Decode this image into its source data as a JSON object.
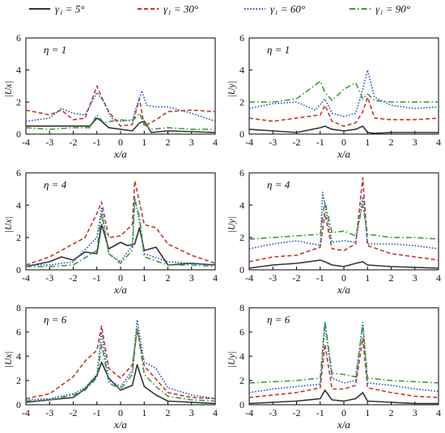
{
  "legend": [
    {
      "label": "γ₁ = 5°",
      "color": "#333333",
      "dash": "solid"
    },
    {
      "label": "γ₁ = 30°",
      "color": "#c0392b",
      "dash": "dashed"
    },
    {
      "label": "γ₁ = 60°",
      "color": "#2255cc",
      "dash": "dotted"
    },
    {
      "label": "γ₁ = 90°",
      "color": "#3a9a3a",
      "dash": "dashdot"
    }
  ],
  "colors": {
    "g5": "#333333",
    "g30": "#c0392b",
    "g60": "#2255cc",
    "g90": "#3a9a3a"
  },
  "chart_data": [
    {
      "type": "line",
      "title": "η = 1",
      "ylabel": "|Ux|",
      "xlabel": "x/a",
      "xlim": [
        -4,
        4
      ],
      "ylim": [
        0,
        6
      ],
      "yticks": [
        0,
        2,
        4,
        6
      ],
      "xticks": [
        -4,
        -3,
        -2,
        -1,
        0,
        1,
        2,
        3,
        4
      ],
      "series": [
        {
          "name": "γ₁ = 5°",
          "x": [
            -4,
            -3,
            -2,
            -1.3,
            -1,
            -0.8,
            -0.5,
            0,
            0.5,
            0.8,
            1,
            1.3,
            2,
            3,
            4
          ],
          "y": [
            0.5,
            0.5,
            0.5,
            0.5,
            1.0,
            0.8,
            0.4,
            0.3,
            0.2,
            0.7,
            0.8,
            0.1,
            0.2,
            0.15,
            0.1
          ]
        },
        {
          "name": "γ₁ = 30°",
          "x": [
            -4,
            -3,
            -2.5,
            -2,
            -1.5,
            -1,
            -0.8,
            -0.5,
            0,
            0.5,
            0.8,
            1,
            1.5,
            2,
            3,
            4
          ],
          "y": [
            1.5,
            1.2,
            1.5,
            0.9,
            1.0,
            3.0,
            2.3,
            1.4,
            0.5,
            0.6,
            2.2,
            0.5,
            0.9,
            1.4,
            1.5,
            1.4
          ]
        },
        {
          "name": "γ₁ = 60°",
          "x": [
            -4,
            -3,
            -2.5,
            -2,
            -1.5,
            -1,
            -0.7,
            -0.4,
            0,
            0.5,
            0.9,
            1.1,
            1.5,
            2,
            3,
            4
          ],
          "y": [
            0.8,
            1.0,
            1.6,
            1.3,
            1.2,
            2.6,
            2.0,
            1.0,
            0.8,
            0.9,
            2.7,
            1.8,
            1.7,
            1.7,
            1.3,
            0.8
          ]
        },
        {
          "name": "γ₁ = 90°",
          "x": [
            -4,
            -3,
            -2,
            -1.3,
            -1,
            -0.7,
            -0.4,
            0,
            0.5,
            0.8,
            1,
            1.3,
            2,
            3,
            4
          ],
          "y": [
            0.4,
            0.3,
            0.4,
            0.4,
            1.2,
            0.7,
            0.8,
            0.9,
            0.8,
            1.3,
            0.6,
            0.3,
            0.4,
            0.3,
            0.3
          ]
        }
      ]
    },
    {
      "type": "line",
      "title": "η = 1",
      "ylabel": "|Uy|",
      "xlabel": "x/a",
      "xlim": [
        -4,
        4
      ],
      "ylim": [
        0,
        6
      ],
      "yticks": [
        0,
        2,
        4,
        6
      ],
      "xticks": [
        -4,
        -3,
        -2,
        -1,
        0,
        1,
        2,
        3,
        4
      ],
      "series": [
        {
          "name": "γ₁ = 5°",
          "x": [
            -4,
            -3,
            -2,
            -1,
            -0.8,
            -0.5,
            0,
            0.5,
            0.8,
            1,
            1.3,
            2,
            3,
            4
          ],
          "y": [
            0.3,
            0.2,
            0.1,
            0.4,
            0.5,
            0.3,
            0.2,
            0.3,
            0.5,
            0.1,
            0.05,
            0.1,
            0.1,
            0.1
          ]
        },
        {
          "name": "γ₁ = 30°",
          "x": [
            -4,
            -3,
            -2,
            -1,
            -0.8,
            -0.5,
            0,
            0.5,
            0.8,
            1,
            1.3,
            2,
            3,
            4
          ],
          "y": [
            1.0,
            0.8,
            1.0,
            1.2,
            1.8,
            0.8,
            0.5,
            0.7,
            1.4,
            2.3,
            1.0,
            0.9,
            0.9,
            1.0
          ]
        },
        {
          "name": "γ₁ = 60°",
          "x": [
            -4,
            -3,
            -2,
            -1.2,
            -0.8,
            -0.5,
            0,
            0.5,
            0.8,
            1,
            1.3,
            2,
            3,
            4
          ],
          "y": [
            1.6,
            1.9,
            2.0,
            1.5,
            2.2,
            1.3,
            1.1,
            1.3,
            2.8,
            4.0,
            2.3,
            1.8,
            1.6,
            1.7
          ]
        },
        {
          "name": "γ₁ = 90°",
          "x": [
            -4,
            -3,
            -2,
            -1,
            -0.8,
            -0.5,
            0,
            0.5,
            0.8,
            1,
            1.3,
            2,
            3,
            4
          ],
          "y": [
            2.0,
            2.0,
            2.2,
            3.3,
            2.6,
            2.1,
            2.8,
            3.2,
            2.2,
            2.5,
            2.1,
            2.0,
            2.0,
            2.0
          ]
        }
      ]
    },
    {
      "type": "line",
      "title": "η = 4",
      "ylabel": "|Ux|",
      "xlabel": "x/a",
      "xlim": [
        -4,
        4
      ],
      "ylim": [
        0,
        6
      ],
      "yticks": [
        0,
        2,
        4,
        6
      ],
      "xticks": [
        -4,
        -3,
        -2,
        -1,
        0,
        1,
        2,
        3,
        4
      ],
      "series": [
        {
          "name": "γ₁ = 5°",
          "x": [
            -4,
            -3,
            -2.5,
            -2,
            -1.5,
            -1,
            -0.8,
            -0.5,
            0,
            0.3,
            0.6,
            0.8,
            1,
            1.5,
            2,
            3,
            4
          ],
          "y": [
            0.2,
            0.5,
            0.8,
            0.6,
            1.1,
            1.0,
            2.8,
            1.3,
            1.7,
            1.5,
            1.6,
            2.6,
            1.2,
            1.4,
            0.3,
            0.4,
            0.3
          ]
        },
        {
          "name": "γ₁ = 30°",
          "x": [
            -4,
            -3,
            -2,
            -1.5,
            -1,
            -0.8,
            -0.5,
            0,
            0.5,
            0.6,
            0.8,
            1,
            1.5,
            2,
            3,
            4
          ],
          "y": [
            0.3,
            0.8,
            1.6,
            2.0,
            3.5,
            4.2,
            2.0,
            2.1,
            2.8,
            5.5,
            4.2,
            2.8,
            2.6,
            1.6,
            0.9,
            0.4
          ]
        },
        {
          "name": "γ₁ = 60°",
          "x": [
            -4,
            -3,
            -2,
            -1,
            -0.8,
            -0.5,
            0,
            0.5,
            0.6,
            0.8,
            1,
            2,
            3,
            4
          ],
          "y": [
            0.3,
            0.3,
            0.5,
            2.0,
            3.8,
            1.0,
            0.5,
            1.5,
            4.5,
            3.0,
            1.0,
            0.5,
            0.4,
            0.3
          ]
        },
        {
          "name": "γ₁ = 90°",
          "x": [
            -4,
            -3,
            -2,
            -1,
            -0.8,
            -0.5,
            0,
            0.5,
            0.6,
            0.8,
            1,
            2,
            3,
            4
          ],
          "y": [
            0.2,
            0.2,
            0.3,
            1.2,
            3.5,
            1.0,
            0.4,
            1.2,
            4.3,
            3.3,
            0.8,
            0.3,
            0.3,
            0.2
          ]
        }
      ]
    },
    {
      "type": "line",
      "title": "η = 4",
      "ylabel": "|Uy|",
      "xlabel": "x/a",
      "xlim": [
        -4,
        4
      ],
      "ylim": [
        0,
        6
      ],
      "yticks": [
        0,
        2,
        4,
        6
      ],
      "xticks": [
        -4,
        -3,
        -2,
        -1,
        0,
        1,
        2,
        3,
        4
      ],
      "series": [
        {
          "name": "γ₁ = 5°",
          "x": [
            -4,
            -3,
            -2,
            -1,
            -0.8,
            -0.5,
            0,
            0.5,
            0.8,
            1,
            2,
            3,
            4
          ],
          "y": [
            0.1,
            0.3,
            0.4,
            0.6,
            0.5,
            0.3,
            0.2,
            0.4,
            0.5,
            0.3,
            0.2,
            0.15,
            0.1
          ]
        },
        {
          "name": "γ₁ = 30°",
          "x": [
            -4,
            -3,
            -2,
            -1,
            -0.8,
            -0.5,
            0,
            0.5,
            0.8,
            1,
            2,
            3,
            4
          ],
          "y": [
            0.5,
            0.8,
            0.9,
            1.4,
            3.5,
            1.3,
            1.2,
            1.6,
            5.7,
            1.5,
            1.0,
            0.8,
            0.6
          ]
        },
        {
          "name": "γ₁ = 60°",
          "x": [
            -4,
            -3,
            -2,
            -1,
            -0.9,
            -0.5,
            0,
            0.5,
            0.8,
            1,
            2,
            3,
            4
          ],
          "y": [
            1.3,
            1.6,
            1.8,
            1.5,
            4.8,
            1.7,
            1.8,
            1.7,
            4.5,
            1.6,
            1.6,
            1.5,
            1.3
          ]
        },
        {
          "name": "γ₁ = 90°",
          "x": [
            -4,
            -3,
            -2,
            -1,
            -0.8,
            -0.5,
            0,
            0.5,
            0.8,
            1,
            2,
            3,
            4
          ],
          "y": [
            1.9,
            2.0,
            2.1,
            2.2,
            4.2,
            2.3,
            2.4,
            2.1,
            4.0,
            2.2,
            2.0,
            2.0,
            1.9
          ]
        }
      ]
    },
    {
      "type": "line",
      "title": "η = 6",
      "ylabel": "|Ux|",
      "xlabel": "x/a",
      "xlim": [
        -4,
        4
      ],
      "ylim": [
        0,
        8
      ],
      "yticks": [
        0,
        2,
        4,
        6,
        8
      ],
      "xticks": [
        -4,
        -3,
        -2,
        -1,
        0,
        1,
        2,
        3,
        4
      ],
      "series": [
        {
          "name": "γ₁ = 5°",
          "x": [
            -4,
            -3,
            -2,
            -1.5,
            -1,
            -0.8,
            -0.5,
            0,
            0.5,
            0.7,
            1,
            1.5,
            2,
            3,
            4
          ],
          "y": [
            0.2,
            0.4,
            0.6,
            1.3,
            2.4,
            3.5,
            2.2,
            1.2,
            1.6,
            3.3,
            1.5,
            0.8,
            0.3,
            0.2,
            0.1
          ]
        },
        {
          "name": "γ₁ = 30°",
          "x": [
            -4,
            -3,
            -2,
            -1.5,
            -1,
            -0.8,
            -0.5,
            0,
            0.5,
            0.7,
            1,
            1.5,
            2,
            3,
            4
          ],
          "y": [
            0.5,
            0.9,
            2.3,
            3.6,
            4.5,
            6.5,
            3.0,
            2.2,
            3.3,
            6.2,
            3.2,
            2.1,
            1.0,
            0.6,
            0.5
          ]
        },
        {
          "name": "γ₁ = 60°",
          "x": [
            -4,
            -3,
            -2,
            -1.5,
            -1,
            -0.8,
            -0.5,
            0,
            0.5,
            0.7,
            1,
            1.5,
            2,
            3,
            4
          ],
          "y": [
            0.4,
            0.5,
            0.9,
            1.4,
            2.5,
            6.0,
            2.0,
            1.5,
            2.8,
            7.0,
            3.5,
            3.0,
            1.4,
            0.8,
            0.5
          ]
        },
        {
          "name": "γ₁ = 90°",
          "x": [
            -4,
            -3,
            -2,
            -1.5,
            -1,
            -0.8,
            -0.5,
            0,
            0.5,
            0.7,
            1,
            1.5,
            2,
            3,
            4
          ],
          "y": [
            0.3,
            0.4,
            0.8,
            1.2,
            2.2,
            5.0,
            1.8,
            1.3,
            2.5,
            6.4,
            2.5,
            1.5,
            0.7,
            0.4,
            0.3
          ]
        }
      ]
    },
    {
      "type": "line",
      "title": "η = 6",
      "ylabel": "|Uy|",
      "xlabel": "x/a",
      "xlim": [
        -4,
        4
      ],
      "ylim": [
        0,
        8
      ],
      "yticks": [
        0,
        2,
        4,
        6,
        8
      ],
      "xticks": [
        -4,
        -3,
        -2,
        -1,
        0,
        1,
        2,
        3,
        4
      ],
      "series": [
        {
          "name": "γ₁ = 5°",
          "x": [
            -4,
            -3,
            -2,
            -1,
            -0.8,
            -0.5,
            0,
            0.5,
            0.8,
            1,
            2,
            3,
            4
          ],
          "y": [
            0.1,
            0.2,
            0.3,
            0.5,
            1.2,
            0.4,
            0.3,
            0.5,
            1.0,
            0.3,
            0.2,
            0.1,
            0.1
          ]
        },
        {
          "name": "γ₁ = 30°",
          "x": [
            -4,
            -3,
            -2,
            -1,
            -0.8,
            -0.5,
            0,
            0.5,
            0.8,
            1,
            2,
            3,
            4
          ],
          "y": [
            0.6,
            0.8,
            1.0,
            1.4,
            5.0,
            1.3,
            1.3,
            1.6,
            5.5,
            1.4,
            1.0,
            0.7,
            0.6
          ]
        },
        {
          "name": "γ₁ = 60°",
          "x": [
            -4,
            -3,
            -2,
            -1,
            -0.8,
            -0.5,
            0,
            0.5,
            0.8,
            1,
            2,
            3,
            4
          ],
          "y": [
            1.0,
            1.3,
            1.5,
            1.7,
            6.6,
            2.2,
            1.8,
            2.0,
            6.8,
            1.8,
            1.6,
            1.3,
            1.1
          ]
        },
        {
          "name": "γ₁ = 90°",
          "x": [
            -4,
            -3,
            -2,
            -1,
            -0.8,
            -0.5,
            0,
            0.5,
            0.8,
            1,
            2,
            3,
            4
          ],
          "y": [
            1.8,
            1.9,
            2.0,
            2.2,
            6.9,
            2.6,
            2.5,
            2.3,
            6.6,
            2.2,
            2.0,
            1.9,
            1.8
          ]
        }
      ]
    }
  ]
}
